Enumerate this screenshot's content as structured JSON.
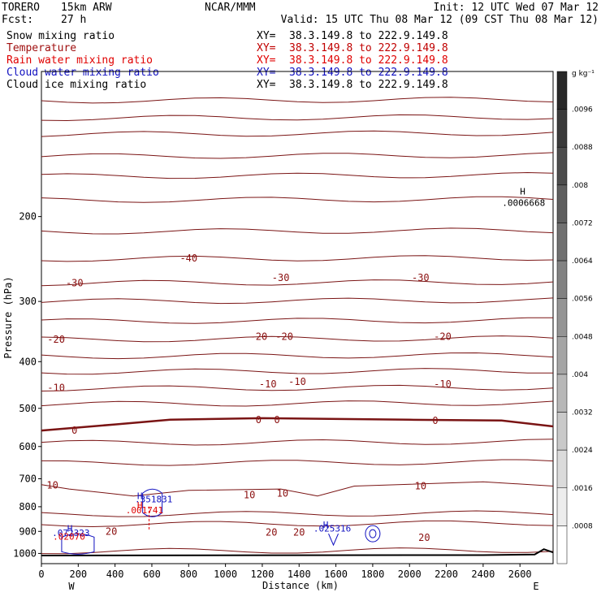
{
  "header": {
    "model": "TORERO",
    "resolution": "15km ARW",
    "org": "NCAR/MMM",
    "init": "Init: 12 UTC Wed 07 Mar 12",
    "fcst_label": "Fcst:",
    "fcst_value": "27 h",
    "valid": "Valid: 15 UTC Thu 08 Mar 12 (09 CST Thu 08 Mar 12)"
  },
  "fields": [
    {
      "name": "Snow mixing ratio",
      "color": "#000000",
      "xy": "",
      "range": ""
    },
    {
      "name": "Temperature",
      "color": "#a01010",
      "xy": "XY=",
      "range": "38.3.149.8 to 222.9.149.8"
    },
    {
      "name": "Rain water mixing ratio",
      "color": "#e00000",
      "xy": "XY=",
      "range": "38.3.149.8 to 222.9.149.8"
    },
    {
      "name": "Cloud water mixing ratio",
      "color": "#1010c0",
      "xy": "XY=",
      "range": "38.3.149.8 to 222.9.149.8"
    },
    {
      "name": "Cloud ice mixing ratio",
      "color": "#000000",
      "xy": "XY=",
      "range": "38.3.149.8 to 222.9.149.8"
    }
  ],
  "top_xy": {
    "xy": "XY=",
    "range": "38.3.149.8 to 222.9.149.8"
  },
  "chart_data": {
    "type": "line",
    "title": "",
    "xlabel": "Distance (km)",
    "ylabel": "Pressure (hPa)",
    "xlim": [
      0,
      2780
    ],
    "ylim": [
      1050,
      100
    ],
    "y_log": true,
    "x_ticks": [
      0,
      200,
      400,
      600,
      800,
      1000,
      1200,
      1400,
      1600,
      1800,
      2000,
      2200,
      2400,
      2600
    ],
    "y_ticks": [
      200,
      300,
      400,
      500,
      600,
      700,
      800,
      900,
      1000
    ],
    "x_end_labels": {
      "left": "W",
      "right": "E"
    },
    "isotherm_levels": [
      -40,
      -30,
      -20,
      -10,
      0,
      10,
      20
    ],
    "isotherms": [
      {
        "level": 0,
        "x": [
          0,
          400,
          700,
          1200,
          2000,
          2500,
          2780
        ],
        "y": [
          556,
          540,
          528,
          524,
          528,
          530,
          545
        ],
        "width": 2.5
      },
      {
        "level": 10,
        "x": [
          0,
          150,
          500,
          800,
          1300,
          1500,
          1700,
          2400,
          2780
        ],
        "y": [
          720,
          735,
          760,
          740,
          735,
          760,
          725,
          710,
          725
        ],
        "width": 1
      }
    ],
    "temp_labels": [
      {
        "text": "-40",
        "x": 800,
        "y": 244
      },
      {
        "text": "-30",
        "x": 180,
        "y": 275
      },
      {
        "text": "-30",
        "x": 1300,
        "y": 268
      },
      {
        "text": "-30",
        "x": 2060,
        "y": 268
      },
      {
        "text": "-20",
        "x": 80,
        "y": 360
      },
      {
        "text": "-20",
        "x": 1180,
        "y": 355
      },
      {
        "text": "-20",
        "x": 1320,
        "y": 355
      },
      {
        "text": "-20",
        "x": 2180,
        "y": 355
      },
      {
        "text": "-10",
        "x": 80,
        "y": 453
      },
      {
        "text": "-10",
        "x": 1230,
        "y": 445
      },
      {
        "text": "-10",
        "x": 1390,
        "y": 440
      },
      {
        "text": "-10",
        "x": 2180,
        "y": 445
      },
      {
        "text": "0",
        "x": 180,
        "y": 556
      },
      {
        "text": "0",
        "x": 1180,
        "y": 528
      },
      {
        "text": "0",
        "x": 1280,
        "y": 528
      },
      {
        "text": "0",
        "x": 2140,
        "y": 530
      },
      {
        "text": "10",
        "x": 60,
        "y": 722
      },
      {
        "text": "10",
        "x": 1130,
        "y": 757
      },
      {
        "text": "10",
        "x": 1310,
        "y": 750
      },
      {
        "text": "10",
        "x": 2060,
        "y": 725
      },
      {
        "text": "20",
        "x": 380,
        "y": 900
      },
      {
        "text": "20",
        "x": 1250,
        "y": 905
      },
      {
        "text": "20",
        "x": 1400,
        "y": 905
      },
      {
        "text": "20",
        "x": 2080,
        "y": 928
      }
    ],
    "maxima": [
      {
        "text": ".0006668",
        "x": 2620,
        "y": 190,
        "color": "#000000",
        "h_x": 2600,
        "h_y": 180
      },
      {
        "text": ".351831",
        "x": 610,
        "y": 784,
        "color": "#1010c0",
        "h_x": 520,
        "h_y": 772
      },
      {
        "text": ".001741",
        "x": 560,
        "y": 826,
        "color": "#e00000",
        "h_x": 520,
        "h_y": 807
      },
      {
        "text": ".072323",
        "x": 160,
        "y": 920,
        "color": "#1010c0",
        "h_x": 140,
        "h_y": 900
      },
      {
        "text": ".02070",
        "x": 150,
        "y": 937,
        "color": "#e00000",
        "h_x": null,
        "h_y": null
      },
      {
        "text": ".025316",
        "x": 1580,
        "y": 900,
        "color": "#1010c0",
        "h_x": 1530,
        "h_y": 885
      }
    ],
    "colorbar": {
      "unit": "g kg⁻¹",
      "labels": [
        ".0096",
        ".0088",
        ".008",
        ".0072",
        ".0064",
        ".0056",
        ".0048",
        ".004",
        ".0032",
        ".0024",
        ".0016",
        ".0008"
      ]
    }
  }
}
